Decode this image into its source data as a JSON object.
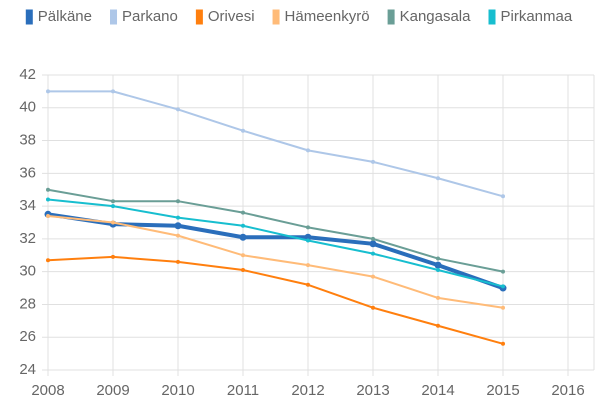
{
  "chart_data": {
    "type": "line",
    "x": [
      2008,
      2009,
      2010,
      2011,
      2012,
      2013,
      2014,
      2015
    ],
    "series": [
      {
        "name": "Pälkäne",
        "color": "#2a6ebb",
        "values": [
          33.5,
          32.9,
          32.8,
          32.1,
          32.1,
          31.7,
          30.4,
          29.0
        ]
      },
      {
        "name": "Parkano",
        "color": "#aec7e8",
        "values": [
          41.0,
          41.0,
          39.9,
          38.6,
          37.4,
          36.7,
          35.7,
          34.6
        ]
      },
      {
        "name": "Orivesi",
        "color": "#ff7f0e",
        "values": [
          30.7,
          30.9,
          30.6,
          30.1,
          29.2,
          27.8,
          26.7,
          25.6
        ]
      },
      {
        "name": "Hämeenkyrö",
        "color": "#ffbb78",
        "values": [
          33.4,
          33.0,
          32.2,
          31.0,
          30.4,
          29.7,
          28.4,
          27.8
        ]
      },
      {
        "name": "Kangasala",
        "color": "#6a9e96",
        "values": [
          35.0,
          34.3,
          34.3,
          33.6,
          32.7,
          32.0,
          30.8,
          30.0
        ]
      },
      {
        "name": "Pirkanmaa",
        "color": "#17becf",
        "values": [
          34.4,
          34.0,
          33.3,
          32.8,
          31.9,
          31.1,
          30.1,
          29.1
        ]
      }
    ],
    "xlim": [
      2008,
      2016
    ],
    "xticks": [
      2008,
      2009,
      2010,
      2011,
      2012,
      2013,
      2014,
      2015,
      2016
    ],
    "ylim": [
      24,
      42
    ],
    "yticks": [
      24,
      26,
      28,
      30,
      32,
      34,
      36,
      38,
      40,
      42
    ],
    "grid": true,
    "legend": "top"
  }
}
